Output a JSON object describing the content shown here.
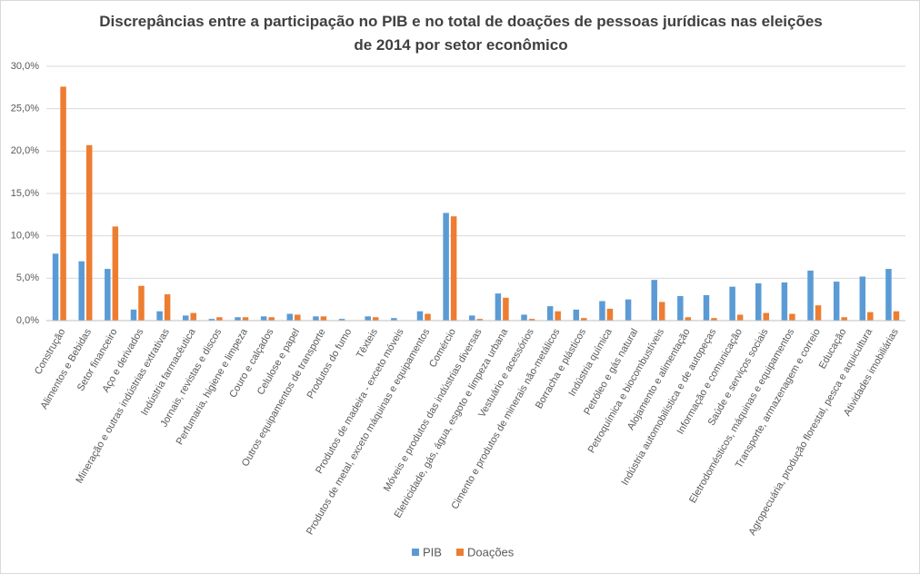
{
  "chart_data": {
    "type": "bar",
    "title": "Discrepâncias entre a participação no PIB e no total de doações de pessoas jurídicas nas eleições de 2014 por setor econômico",
    "categories": [
      "Construção",
      "Alimentos e Bebidas",
      "Setor financeiro",
      "Aço e derivados",
      "Mineração e outras indústrias extrativas",
      "Indústria farmacêutica",
      "Jornais, revistas e discos",
      "Perfumaria, higiene e limpeza",
      "Couro e calçados",
      "Celulose e papel",
      "Outros equipamentos de transporte",
      "Produtos do fumo",
      "Têxteis",
      "Produtos de madeira - exceto móveis",
      "Produtos de metal, exceto máquinas e equipamentos",
      "Comércio",
      "Móveis e produtos das indústrias diversas",
      "Eletricidade, gás, água, esgoto e limpeza urbana",
      "Vestuário e acessórios",
      "Cimento e produtos de minerais não-metálicos",
      "Borracha e plásticos",
      "Indústria química",
      "Petróleo e gás natural",
      "Petroquímica e biocombustíveis",
      "Alojamento e alimentação",
      "Indústria automobilística e de autopeças",
      "Informação e comunicação",
      "Saúde e serviços sociais",
      "Eletrodomésticos, máquinas e equipamentos",
      "Transporte, armazenagem e correio",
      "Educação",
      "Agropecuária, produção florestal, pesca e aquicultura",
      "Atividades imobiliárias"
    ],
    "series": [
      {
        "name": "PIB",
        "color": "#5b9bd5",
        "values": [
          7.9,
          7.0,
          6.1,
          1.3,
          1.1,
          0.6,
          0.2,
          0.4,
          0.5,
          0.8,
          0.5,
          0.2,
          0.5,
          0.3,
          1.1,
          12.7,
          0.6,
          3.2,
          0.7,
          1.7,
          1.3,
          2.3,
          2.5,
          4.8,
          2.9,
          3.0,
          4.0,
          4.4,
          4.5,
          5.9,
          4.6,
          5.2,
          6.1
        ]
      },
      {
        "name": "Doações",
        "color": "#ed7d31",
        "values": [
          27.6,
          20.7,
          11.1,
          4.1,
          3.1,
          0.9,
          0.4,
          0.4,
          0.4,
          0.7,
          0.5,
          0.0,
          0.4,
          0.0,
          0.8,
          12.3,
          0.2,
          2.7,
          0.2,
          1.1,
          0.3,
          1.4,
          0.0,
          2.2,
          0.4,
          0.3,
          0.7,
          0.9,
          0.8,
          1.8,
          0.4,
          1.0,
          1.1
        ]
      }
    ],
    "ylim": [
      0,
      30
    ],
    "yticks": [
      {
        "value": 0,
        "label": "0,0%"
      },
      {
        "value": 5,
        "label": "5,0%"
      },
      {
        "value": 10,
        "label": "10,0%"
      },
      {
        "value": 15,
        "label": "15,0%"
      },
      {
        "value": 20,
        "label": "20,0%"
      },
      {
        "value": 25,
        "label": "25,0%"
      },
      {
        "value": 30,
        "label": "30,0%"
      }
    ],
    "grid": true,
    "legend": "bottom"
  }
}
